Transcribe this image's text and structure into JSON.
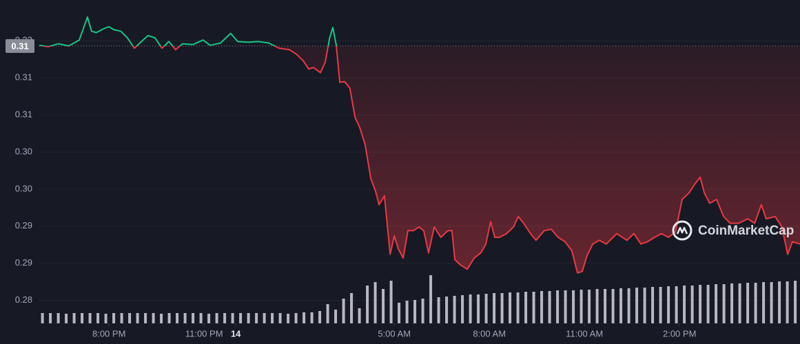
{
  "chart_data": {
    "type": "line",
    "watermark": "CoinMarketCap",
    "x": [
      17.8,
      18.08,
      18.41,
      18.73,
      19.06,
      19.32,
      19.45,
      19.6,
      19.82,
      20.0,
      20.15,
      20.37,
      20.58,
      20.8,
      21.02,
      21.23,
      21.45,
      21.67,
      21.89,
      22.1,
      22.32,
      22.65,
      22.97,
      23.19,
      23.52,
      23.84,
      24.06,
      24.39,
      24.71,
      25.04,
      25.37,
      25.69,
      25.91,
      26.13,
      26.3,
      26.45,
      26.67,
      26.82,
      26.96,
      27.06,
      27.17,
      27.28,
      27.43,
      27.6,
      27.76,
      27.91,
      28.08,
      28.26,
      28.41,
      28.52,
      28.69,
      28.87,
      29.0,
      29.13,
      29.28,
      29.43,
      29.6,
      29.78,
      29.93,
      30.08,
      30.26,
      30.47,
      30.69,
      30.82,
      30.91,
      31.08,
      31.3,
      31.52,
      31.73,
      31.89,
      32.04,
      32.17,
      32.32,
      32.54,
      32.76,
      32.91,
      33.08,
      33.3,
      33.47,
      33.73,
      33.95,
      34.17,
      34.39,
      34.6,
      34.78,
      34.93,
      35.08,
      35.26,
      35.47,
      35.69,
      36.02,
      36.34,
      36.56,
      36.78,
      36.99,
      37.21,
      37.43,
      37.65,
      37.87,
      38.08,
      38.3,
      38.47,
      38.65,
      38.78,
      38.95,
      39.17,
      39.39,
      39.6,
      39.87,
      40.15,
      40.37,
      40.58,
      40.73,
      41.02,
      41.23,
      41.41,
      41.56,
      41.8
    ],
    "values": [
      0.3144,
      0.3142,
      0.3146,
      0.3143,
      0.3151,
      0.3182,
      0.3163,
      0.3161,
      0.3166,
      0.3169,
      0.3165,
      0.3163,
      0.3154,
      0.314,
      0.3149,
      0.3157,
      0.3154,
      0.314,
      0.3149,
      0.3138,
      0.3146,
      0.3145,
      0.3151,
      0.3144,
      0.3147,
      0.316,
      0.3149,
      0.3148,
      0.3149,
      0.3147,
      0.314,
      0.3138,
      0.3132,
      0.3123,
      0.3112,
      0.3114,
      0.3107,
      0.3121,
      0.3154,
      0.3168,
      0.3144,
      0.3094,
      0.3095,
      0.3086,
      0.3047,
      0.3033,
      0.301,
      0.2964,
      0.2947,
      0.2929,
      0.2941,
      0.2862,
      0.2887,
      0.2869,
      0.2857,
      0.2894,
      0.2894,
      0.2899,
      0.2894,
      0.2864,
      0.2899,
      0.2885,
      0.2894,
      0.2894,
      0.2855,
      0.2848,
      0.2842,
      0.2857,
      0.2864,
      0.2876,
      0.2906,
      0.2885,
      0.2885,
      0.289,
      0.2899,
      0.2913,
      0.2904,
      0.289,
      0.2881,
      0.2894,
      0.2896,
      0.2885,
      0.2879,
      0.2867,
      0.2837,
      0.2839,
      0.286,
      0.2876,
      0.2881,
      0.2876,
      0.289,
      0.2881,
      0.289,
      0.2876,
      0.2879,
      0.2885,
      0.289,
      0.2885,
      0.2892,
      0.2936,
      0.2945,
      0.2956,
      0.2966,
      0.2945,
      0.2931,
      0.2936,
      0.2913,
      0.2904,
      0.2904,
      0.291,
      0.2904,
      0.2929,
      0.291,
      0.2913,
      0.2899,
      0.2862,
      0.2879,
      0.2876
    ],
    "reference": {
      "value": 0.3143,
      "label": "0.31"
    },
    "up_color": "#16c784",
    "down_color": "#ea3943",
    "volume": {
      "color": "#c9cad1",
      "x": [
        17.9,
        18.15,
        18.4,
        18.65,
        18.9,
        19.15,
        19.4,
        19.65,
        19.9,
        20.15,
        20.4,
        20.65,
        20.9,
        21.15,
        21.4,
        21.65,
        21.9,
        22.15,
        22.4,
        22.65,
        22.9,
        23.15,
        23.4,
        23.65,
        23.9,
        24.15,
        24.4,
        24.65,
        24.9,
        25.15,
        25.4,
        25.65,
        25.9,
        26.15,
        26.4,
        26.65,
        26.9,
        27.15,
        27.4,
        27.65,
        27.9,
        28.15,
        28.4,
        28.65,
        28.9,
        29.15,
        29.4,
        29.65,
        29.9,
        30.15,
        30.4,
        30.65,
        30.9,
        31.15,
        31.4,
        31.65,
        31.9,
        32.15,
        32.4,
        32.65,
        32.9,
        33.15,
        33.4,
        33.65,
        33.9,
        34.15,
        34.4,
        34.65,
        34.9,
        35.15,
        35.4,
        35.65,
        35.9,
        36.15,
        36.4,
        36.65,
        36.9,
        37.15,
        37.4,
        37.65,
        37.9,
        38.15,
        38.4,
        38.65,
        38.9,
        39.15,
        39.4,
        39.65,
        39.9,
        40.15,
        40.4,
        40.65,
        40.9,
        41.15,
        41.4,
        41.65
      ],
      "values": [
        15,
        15,
        15,
        14,
        15,
        15,
        15,
        15,
        14,
        15,
        15,
        15,
        15,
        15,
        15,
        14,
        15,
        15,
        15,
        15,
        15,
        14,
        15,
        15,
        15,
        15,
        15,
        15,
        15,
        15,
        15,
        14,
        15,
        16,
        16,
        18,
        28,
        20,
        36,
        44,
        22,
        55,
        60,
        50,
        62,
        30,
        33,
        34,
        36,
        70,
        38,
        39,
        40,
        41,
        42,
        42,
        43,
        44,
        44,
        45,
        45,
        46,
        46,
        47,
        47,
        48,
        48,
        48,
        49,
        49,
        50,
        50,
        50,
        51,
        51,
        52,
        52,
        53,
        53,
        54,
        54,
        55,
        55,
        56,
        56,
        57,
        57,
        58,
        58,
        59,
        59,
        60,
        60,
        61,
        61,
        62
      ],
      "y2lim": [
        0,
        100
      ]
    },
    "xlim": [
      17.8,
      41.8
    ],
    "xticks": [
      {
        "value": 20,
        "label": "8:00 PM"
      },
      {
        "value": 23,
        "label": "11:00 PM"
      },
      {
        "value": 24,
        "label": "14"
      },
      {
        "value": 29,
        "label": "5:00 AM"
      },
      {
        "value": 32,
        "label": "8:00 AM"
      },
      {
        "value": 35,
        "label": "11:00 AM"
      },
      {
        "value": 38,
        "label": "2:00 PM"
      }
    ],
    "ylim": [
      0.2769,
      0.3205
    ],
    "yticks": [
      {
        "value": 0.28,
        "label": "0.28"
      },
      {
        "value": 0.285,
        "label": "0.29"
      },
      {
        "value": 0.29,
        "label": "0.29"
      },
      {
        "value": 0.295,
        "label": "0.30"
      },
      {
        "value": 0.3,
        "label": "0.30"
      },
      {
        "value": 0.305,
        "label": "0.31"
      },
      {
        "value": 0.31,
        "label": "0.31"
      },
      {
        "value": 0.315,
        "label": "0.32"
      }
    ],
    "grid": true
  }
}
